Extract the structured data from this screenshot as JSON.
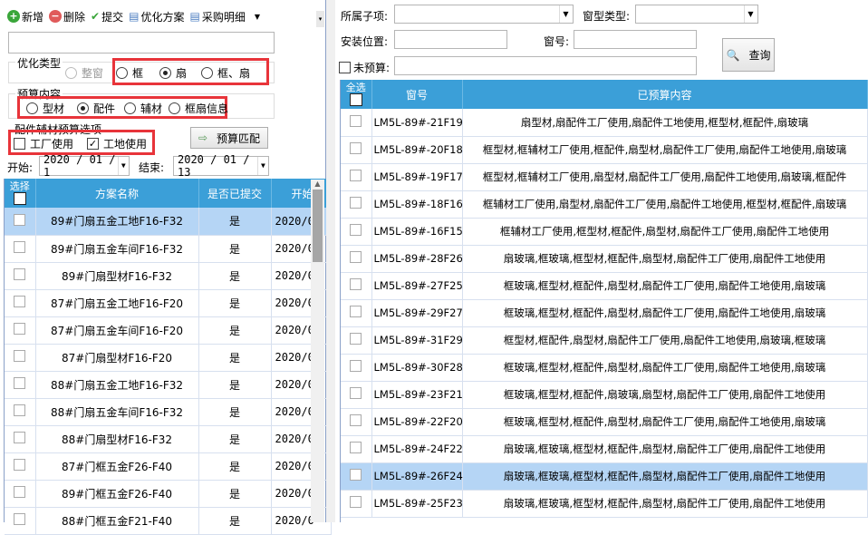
{
  "toolbar": {
    "add": "新增",
    "delete": "删除",
    "submit": "提交",
    "optimize_plan": "优化方案",
    "purchase_detail": "采购明细"
  },
  "optimize_type": {
    "label": "优化类型",
    "options": [
      "整窗",
      "框",
      "扇",
      "框、扇"
    ],
    "selected": "扇",
    "disabled": [
      "整窗"
    ]
  },
  "budget_content": {
    "label": "预算内容",
    "options": [
      "型材",
      "配件",
      "辅材",
      "框扇信息"
    ],
    "selected": "配件"
  },
  "accessory_options": {
    "label": "配件辅材预算选项",
    "factory": "工厂使用",
    "factory_checked": false,
    "site": "工地使用",
    "site_checked": true
  },
  "budget_match_button": "预算匹配",
  "date": {
    "start_label": "开始:",
    "start_value": "2020 / 01 / 1",
    "end_label": "结束:",
    "end_value": "2020 / 01 / 13"
  },
  "left_table": {
    "headers": [
      "选择",
      "方案名称",
      "是否已提交",
      "开始"
    ],
    "rows": [
      [
        "89#门扇五金工地F16-F32",
        "是",
        "2020/0"
      ],
      [
        "89#门扇五金车间F16-F32",
        "是",
        "2020/0"
      ],
      [
        "89#门扇型材F16-F32",
        "是",
        "2020/0"
      ],
      [
        "87#门扇五金工地F16-F20",
        "是",
        "2020/0"
      ],
      [
        "87#门扇五金车间F16-F20",
        "是",
        "2020/0"
      ],
      [
        "87#门扇型材F16-F20",
        "是",
        "2020/0"
      ],
      [
        "88#门扇五金工地F16-F32",
        "是",
        "2020/0"
      ],
      [
        "88#门扇五金车间F16-F32",
        "是",
        "2020/0"
      ],
      [
        "88#门扇型材F16-F32",
        "是",
        "2020/0"
      ],
      [
        "87#门框五金F26-F40",
        "是",
        "2020/0"
      ],
      [
        "89#门框五金F26-F40",
        "是",
        "2020/0"
      ],
      [
        "88#门框五金F21-F40",
        "是",
        "2020/0"
      ]
    ],
    "selected_row": 0
  },
  "filters": {
    "sub_item_label": "所属子项:",
    "window_type_label": "窗型类型:",
    "install_location_label": "安装位置:",
    "window_no_label": "窗号:",
    "unbudgeted_label": "未预算:",
    "query_button": "查询"
  },
  "right_table": {
    "headers": [
      "全选",
      "窗号",
      "已预算内容"
    ],
    "rows": [
      [
        "LM5L-89#-21F19",
        "扇型材,扇配件工厂使用,扇配件工地使用,框型材,框配件,扇玻璃"
      ],
      [
        "LM5L-89#-20F18",
        "框型材,框辅材工厂使用,框配件,扇型材,扇配件工厂使用,扇配件工地使用,扇玻璃"
      ],
      [
        "LM5L-89#-19F17",
        "框型材,框辅材工厂使用,扇型材,扇配件工厂使用,扇配件工地使用,扇玻璃,框配件"
      ],
      [
        "LM5L-89#-18F16",
        "框辅材工厂使用,扇型材,扇配件工厂使用,扇配件工地使用,框型材,框配件,扇玻璃"
      ],
      [
        "LM5L-89#-16F15",
        "框辅材工厂使用,框型材,框配件,扇型材,扇配件工厂使用,扇配件工地使用"
      ],
      [
        "LM5L-89#-28F26",
        "扇玻璃,框玻璃,框型材,框配件,扇型材,扇配件工厂使用,扇配件工地使用"
      ],
      [
        "LM5L-89#-27F25",
        "框玻璃,框型材,框配件,扇型材,扇配件工厂使用,扇配件工地使用,扇玻璃"
      ],
      [
        "LM5L-89#-29F27",
        "框玻璃,框型材,框配件,扇型材,扇配件工厂使用,扇配件工地使用,扇玻璃"
      ],
      [
        "LM5L-89#-31F29",
        "框型材,框配件,扇型材,扇配件工厂使用,扇配件工地使用,扇玻璃,框玻璃"
      ],
      [
        "LM5L-89#-30F28",
        "框玻璃,框型材,框配件,扇型材,扇配件工厂使用,扇配件工地使用,扇玻璃"
      ],
      [
        "LM5L-89#-23F21",
        "框玻璃,框型材,框配件,扇玻璃,扇型材,扇配件工厂使用,扇配件工地使用"
      ],
      [
        "LM5L-89#-22F20",
        "框玻璃,框型材,框配件,扇型材,扇配件工厂使用,扇配件工地使用,扇玻璃"
      ],
      [
        "LM5L-89#-24F22",
        "扇玻璃,框玻璃,框型材,框配件,扇型材,扇配件工厂使用,扇配件工地使用"
      ],
      [
        "LM5L-89#-26F24",
        "扇玻璃,框玻璃,框型材,框配件,扇型材,扇配件工厂使用,扇配件工地使用"
      ],
      [
        "LM5L-89#-25F23",
        "扇玻璃,框玻璃,框型材,框配件,扇型材,扇配件工厂使用,扇配件工地使用"
      ]
    ],
    "selected_row": 13
  },
  "colors": {
    "header_blue": "#3b9fd8",
    "selection": "#b5d5f5",
    "highlight_red": "#e8343a"
  }
}
